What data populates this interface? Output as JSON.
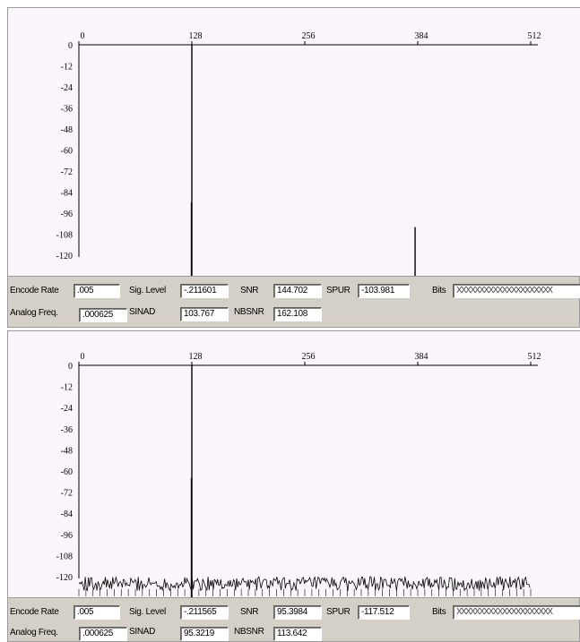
{
  "panels": [
    {
      "stats": {
        "encode_rate_label": "Encode Rate",
        "encode_rate": ".005",
        "sig_level_label": "Sig. Level",
        "sig_level": "-.211601",
        "snr_label": "SNR",
        "snr": "144.702",
        "spur_label": "SPUR",
        "spur": "-103.981",
        "bits_label": "Bits",
        "bits": "XXXXXXXXXXXXXXXXXXXXX",
        "analog_freq_label": "Analog Freq.",
        "analog_freq": ".000625",
        "sinad_label": "SINAD",
        "sinad": "103.767",
        "nbsnr_label": "NBSNR",
        "nbsnr": "162.108"
      }
    },
    {
      "stats": {
        "encode_rate_label": "Encode Rate",
        "encode_rate": ".005",
        "sig_level_label": "Sig. Level",
        "sig_level": "-.211565",
        "snr_label": "SNR",
        "snr": "95.3984",
        "spur_label": "SPUR",
        "spur": "-117.512",
        "bits_label": "Bits",
        "bits": "XXXXXXXXXXXXXXXXXXXXX",
        "analog_freq_label": "Analog Freq.",
        "analog_freq": ".000625",
        "sinad_label": "SINAD",
        "sinad": "95.3219",
        "nbsnr_label": "NBSNR",
        "nbsnr": "113.642"
      }
    }
  ],
  "chart_data": [
    {
      "type": "line",
      "x_ticks": [
        0,
        128,
        256,
        384,
        512
      ],
      "y_ticks": [
        0,
        -12,
        -24,
        -36,
        -48,
        -60,
        -72,
        -84,
        -96,
        -108,
        -120
      ],
      "xlim": [
        0,
        512
      ],
      "ylim": [
        -120,
        0
      ],
      "spikes": [
        {
          "x": 128,
          "y": 0
        },
        {
          "x": 127.5,
          "y": -90
        },
        {
          "x": 381,
          "y": -104
        }
      ],
      "noise_floor": null
    },
    {
      "type": "line",
      "x_ticks": [
        0,
        128,
        256,
        384,
        512
      ],
      "y_ticks": [
        0,
        -12,
        -24,
        -36,
        -48,
        -60,
        -72,
        -84,
        -96,
        -108,
        -120
      ],
      "xlim": [
        0,
        512
      ],
      "ylim": [
        -120,
        0
      ],
      "spikes": [
        {
          "x": 128,
          "y": 0
        },
        {
          "x": 127.5,
          "y": -64
        }
      ],
      "noise_floor": {
        "center": -124,
        "spread": 4,
        "x_start": 0,
        "x_end": 512
      }
    }
  ]
}
